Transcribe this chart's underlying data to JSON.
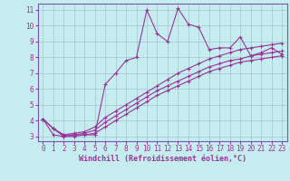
{
  "xlabel": "Windchill (Refroidissement éolien,°C)",
  "bg_color": "#c5edf0",
  "line_color": "#993399",
  "grid_color": "#a0c8cc",
  "spine_color": "#7755aa",
  "xlim": [
    -0.5,
    23.5
  ],
  "ylim": [
    2.7,
    11.4
  ],
  "yticks": [
    3,
    4,
    5,
    6,
    7,
    8,
    9,
    10,
    11
  ],
  "xticks": [
    0,
    1,
    2,
    3,
    4,
    5,
    6,
    7,
    8,
    9,
    10,
    11,
    12,
    13,
    14,
    15,
    16,
    17,
    18,
    19,
    20,
    21,
    22,
    23
  ],
  "series": [
    [
      4.1,
      3.1,
      3.0,
      3.1,
      3.1,
      3.1,
      6.3,
      7.0,
      7.8,
      8.0,
      11.0,
      9.5,
      9.0,
      11.1,
      10.1,
      9.9,
      8.5,
      8.6,
      8.6,
      9.3,
      8.1,
      8.3,
      8.6,
      8.2
    ],
    [
      4.1,
      3.5,
      3.1,
      3.2,
      3.3,
      3.6,
      4.2,
      4.6,
      5.0,
      5.4,
      5.8,
      6.2,
      6.6,
      7.0,
      7.3,
      7.6,
      7.9,
      8.1,
      8.3,
      8.5,
      8.6,
      8.7,
      8.8,
      8.9
    ],
    [
      4.1,
      3.5,
      3.1,
      3.1,
      3.2,
      3.4,
      3.9,
      4.3,
      4.7,
      5.1,
      5.5,
      5.9,
      6.2,
      6.5,
      6.8,
      7.1,
      7.4,
      7.6,
      7.8,
      7.9,
      8.1,
      8.2,
      8.3,
      8.4
    ],
    [
      4.1,
      3.5,
      3.0,
      3.0,
      3.1,
      3.2,
      3.6,
      4.0,
      4.4,
      4.8,
      5.2,
      5.6,
      5.9,
      6.2,
      6.5,
      6.8,
      7.1,
      7.3,
      7.5,
      7.7,
      7.8,
      7.9,
      8.0,
      8.1
    ]
  ],
  "tick_fontsize": 5.5,
  "xlabel_fontsize": 6.0
}
